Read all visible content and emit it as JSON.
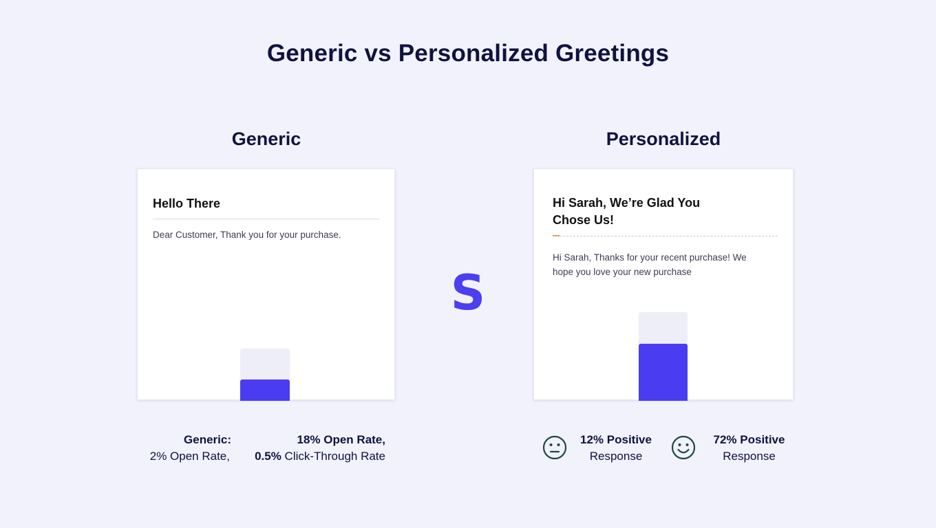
{
  "title": "Generic vs Personalized Greetings",
  "columns": {
    "generic": {
      "label": "Generic",
      "card": {
        "heading": "Hello There",
        "body": "Dear Customer, Thank you for your purchase."
      }
    },
    "personalized": {
      "label": "Personalized",
      "card": {
        "heading": "Hi Sarah, We’re Glad You Chose Us!",
        "body": "Hi Sarah, Thanks for your recent purchase! We hope you love your new purchase"
      }
    }
  },
  "bars": {
    "generic": {
      "fill_fraction": 0.41
    },
    "personalized": {
      "fill_fraction": 0.64
    }
  },
  "center_logo": {
    "glyph": "S",
    "icon": "s-logo-icon"
  },
  "stats": {
    "generic": {
      "label": "Generic:",
      "value": "2% Open Rate,"
    },
    "personalized": {
      "value_bold": "18% Open Rate,",
      "secondary_bold": "0.5%",
      "secondary_text": "Click-Through Rate"
    }
  },
  "responses": {
    "low": {
      "value": "12% Positive",
      "label": "Response",
      "icon": "neutral-face-icon"
    },
    "high": {
      "value": "72% Positive",
      "label": "Response",
      "icon": "smiley-face-icon"
    }
  },
  "colors": {
    "accent": "#4a3cf0",
    "track": "#eeeef9",
    "background": "#f1f2fb",
    "face": "#1f4a3c",
    "divider_accent": "#f08c3a"
  }
}
